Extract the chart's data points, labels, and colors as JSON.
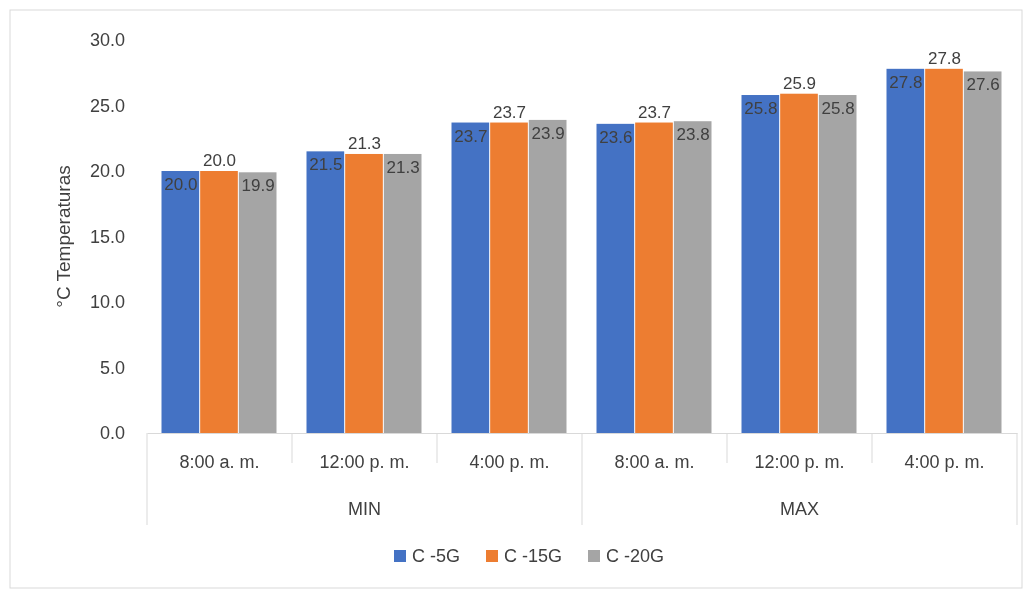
{
  "chart_data": {
    "type": "bar",
    "ylabel": "°C Temperaturas",
    "categories": [
      "8:00 a. m.",
      "12:00 p. m.",
      "4:00 p. m.",
      "8:00 a. m.",
      "12:00 p. m.",
      "4:00 p. m."
    ],
    "series": [
      {
        "name": "C -5G",
        "color": "#4472c4",
        "values": [
          20.0,
          21.5,
          23.7,
          23.6,
          25.8,
          27.8
        ],
        "value_labels": [
          "20.0",
          "21.5",
          "23.7",
          "23.6",
          "25.8",
          "27.8"
        ]
      },
      {
        "name": "C -15G",
        "color": "#ed7d31",
        "values": [
          20.0,
          21.3,
          23.7,
          23.7,
          25.9,
          27.8
        ],
        "value_labels": [
          "20.0",
          "21.3",
          "23.7",
          "23.7",
          "25.9",
          "27.8"
        ]
      },
      {
        "name": "C -20G",
        "color": "#a5a5a5",
        "values": [
          19.9,
          21.3,
          23.9,
          23.8,
          25.8,
          27.6
        ],
        "value_labels": [
          "19.9",
          "21.3",
          "23.9",
          "23.8",
          "25.8",
          "27.6"
        ]
      }
    ],
    "annotations": [
      "MIN",
      "MAX"
    ],
    "ylim": [
      0,
      30
    ],
    "yticks": [
      {
        "value": 0,
        "label": "0.0"
      },
      {
        "value": 5,
        "label": "5.0"
      },
      {
        "value": 10,
        "label": "10.0"
      },
      {
        "value": 15,
        "label": "15.0"
      },
      {
        "value": 20,
        "label": "20.0"
      },
      {
        "value": 25,
        "label": "25.0"
      },
      {
        "value": 30,
        "label": "30.0"
      }
    ],
    "grid": false,
    "legend": "bottom"
  }
}
